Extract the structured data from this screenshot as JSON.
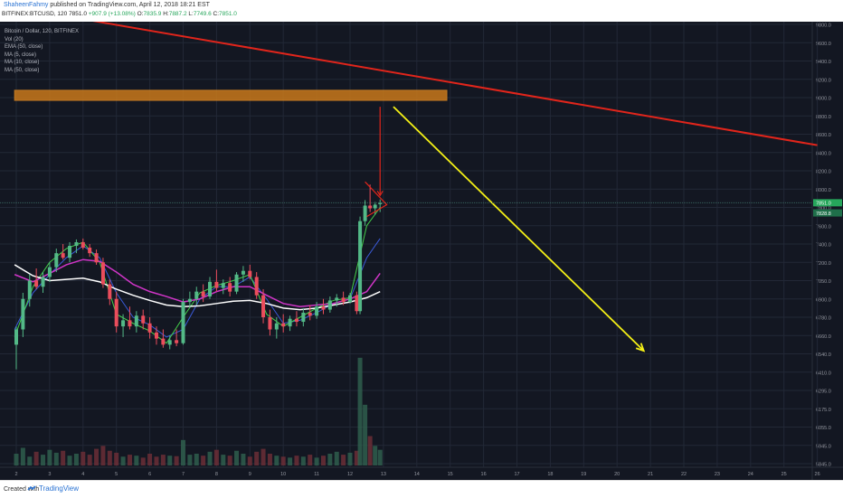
{
  "header": {
    "author": "ShaheenFahmy",
    "published_text": "published on TradingView.com, April 12, 2018 18:21 EST",
    "symbol": "BITFINEX:BTCUSD, 120",
    "last": "7851.0",
    "change": "+907.9 (+13.08%)",
    "o_label": "O:",
    "o_val": "7835.9",
    "h_label": "H:",
    "h_val": "7887.2",
    "l_label": "L:",
    "l_val": "7749.6",
    "c_label": "C:",
    "c_val": "7851.0"
  },
  "legend": {
    "title": "Bitcoin / Dollar, 120, BITFINEX",
    "items": [
      "Vol (20)",
      "EMA (50, close)",
      "MA (5, close)",
      "MA (10, close)",
      "MA (50, close)"
    ]
  },
  "footer": {
    "created": "Created with",
    "brand": "TradingView"
  },
  "colors": {
    "background": "#131722",
    "grid": "#222836",
    "up": "#53b987",
    "down": "#eb4d5c",
    "trendline": "#e1251b",
    "arrow": "#f4f016",
    "zone": "#c8781a",
    "ema": "#ffffff",
    "ma_magenta": "#d135c8",
    "ma_blue": "#3a5ad8",
    "ma_green": "#43d04a"
  },
  "chart_data": {
    "type": "candlestick",
    "symbol": "BITFINEX:BTCUSD",
    "interval": "120",
    "y_axis_labels": [
      9800.0,
      9600.0,
      9400.0,
      9200.0,
      9000.0,
      8800.0,
      8600.0,
      8400.0,
      8200.0,
      8000.0,
      7800.0,
      7600.0,
      7400.0,
      7200.0,
      7050.0,
      6900.0,
      6780.0,
      6660.0,
      6540.0,
      6410.0,
      6295.0,
      6175.0,
      6055.0,
      5945.0,
      5845.0
    ],
    "x_axis_labels": [
      "2",
      "3",
      "4",
      "5",
      "6",
      "7",
      "8",
      "9",
      "10",
      "11",
      "12",
      "13",
      "14",
      "15",
      "16",
      "17",
      "18",
      "19",
      "20",
      "21",
      "22",
      "23",
      "24",
      "25",
      "26"
    ],
    "price_tags": [
      "7851.0",
      "7828.8"
    ],
    "candles": [
      {
        "day": 2.0,
        "o": 6600,
        "h": 6720,
        "l": 6430,
        "c": 6700
      },
      {
        "day": 2.2,
        "o": 6700,
        "h": 6950,
        "l": 6650,
        "c": 6900
      },
      {
        "day": 2.4,
        "o": 6900,
        "h": 7100,
        "l": 6850,
        "c": 7050
      },
      {
        "day": 2.6,
        "o": 7050,
        "h": 7150,
        "l": 6980,
        "c": 7000
      },
      {
        "day": 2.8,
        "o": 7000,
        "h": 7120,
        "l": 6950,
        "c": 7080
      },
      {
        "day": 3.0,
        "o": 7080,
        "h": 7200,
        "l": 7040,
        "c": 7160
      },
      {
        "day": 3.2,
        "o": 7160,
        "h": 7350,
        "l": 7120,
        "c": 7300
      },
      {
        "day": 3.4,
        "o": 7300,
        "h": 7400,
        "l": 7230,
        "c": 7250
      },
      {
        "day": 3.6,
        "o": 7250,
        "h": 7420,
        "l": 7200,
        "c": 7380
      },
      {
        "day": 3.8,
        "o": 7380,
        "h": 7450,
        "l": 7300,
        "c": 7420
      },
      {
        "day": 4.0,
        "o": 7420,
        "h": 7460,
        "l": 7340,
        "c": 7360
      },
      {
        "day": 4.2,
        "o": 7360,
        "h": 7400,
        "l": 7260,
        "c": 7300
      },
      {
        "day": 4.4,
        "o": 7300,
        "h": 7340,
        "l": 7180,
        "c": 7200
      },
      {
        "day": 4.6,
        "o": 7200,
        "h": 7250,
        "l": 6990,
        "c": 7020
      },
      {
        "day": 4.8,
        "o": 7020,
        "h": 7060,
        "l": 6860,
        "c": 6900
      },
      {
        "day": 5.0,
        "o": 6900,
        "h": 6960,
        "l": 6680,
        "c": 6720
      },
      {
        "day": 5.2,
        "o": 6720,
        "h": 6800,
        "l": 6650,
        "c": 6760
      },
      {
        "day": 5.4,
        "o": 6760,
        "h": 6850,
        "l": 6700,
        "c": 6720
      },
      {
        "day": 5.6,
        "o": 6720,
        "h": 6820,
        "l": 6680,
        "c": 6790
      },
      {
        "day": 5.8,
        "o": 6790,
        "h": 6830,
        "l": 6700,
        "c": 6740
      },
      {
        "day": 6.0,
        "o": 6740,
        "h": 6780,
        "l": 6640,
        "c": 6680
      },
      {
        "day": 6.2,
        "o": 6680,
        "h": 6720,
        "l": 6600,
        "c": 6640
      },
      {
        "day": 6.4,
        "o": 6640,
        "h": 6700,
        "l": 6580,
        "c": 6600
      },
      {
        "day": 6.6,
        "o": 6600,
        "h": 6660,
        "l": 6570,
        "c": 6630
      },
      {
        "day": 6.8,
        "o": 6630,
        "h": 6700,
        "l": 6590,
        "c": 6610
      },
      {
        "day": 7.0,
        "o": 6610,
        "h": 6900,
        "l": 6600,
        "c": 6880
      },
      {
        "day": 7.2,
        "o": 6880,
        "h": 6960,
        "l": 6840,
        "c": 6900
      },
      {
        "day": 7.4,
        "o": 6900,
        "h": 7000,
        "l": 6860,
        "c": 6960
      },
      {
        "day": 7.6,
        "o": 6960,
        "h": 7020,
        "l": 6880,
        "c": 6920
      },
      {
        "day": 7.8,
        "o": 6920,
        "h": 7080,
        "l": 6900,
        "c": 7040
      },
      {
        "day": 8.0,
        "o": 7040,
        "h": 7140,
        "l": 6960,
        "c": 6990
      },
      {
        "day": 8.2,
        "o": 6990,
        "h": 7060,
        "l": 6940,
        "c": 7030
      },
      {
        "day": 8.4,
        "o": 7030,
        "h": 7080,
        "l": 6920,
        "c": 6960
      },
      {
        "day": 8.6,
        "o": 6960,
        "h": 7120,
        "l": 6940,
        "c": 7100
      },
      {
        "day": 8.8,
        "o": 7100,
        "h": 7170,
        "l": 7040,
        "c": 7130
      },
      {
        "day": 9.0,
        "o": 7130,
        "h": 7180,
        "l": 7060,
        "c": 7080
      },
      {
        "day": 9.2,
        "o": 7080,
        "h": 7120,
        "l": 6900,
        "c": 6930
      },
      {
        "day": 9.4,
        "o": 6930,
        "h": 6980,
        "l": 6740,
        "c": 6780
      },
      {
        "day": 9.6,
        "o": 6780,
        "h": 6830,
        "l": 6660,
        "c": 6700
      },
      {
        "day": 9.8,
        "o": 6700,
        "h": 6780,
        "l": 6640,
        "c": 6740
      },
      {
        "day": 10.0,
        "o": 6740,
        "h": 6800,
        "l": 6680,
        "c": 6720
      },
      {
        "day": 10.2,
        "o": 6720,
        "h": 6790,
        "l": 6690,
        "c": 6770
      },
      {
        "day": 10.4,
        "o": 6770,
        "h": 6820,
        "l": 6720,
        "c": 6750
      },
      {
        "day": 10.6,
        "o": 6750,
        "h": 6840,
        "l": 6720,
        "c": 6810
      },
      {
        "day": 10.8,
        "o": 6810,
        "h": 6860,
        "l": 6760,
        "c": 6790
      },
      {
        "day": 11.0,
        "o": 6790,
        "h": 6880,
        "l": 6770,
        "c": 6850
      },
      {
        "day": 11.2,
        "o": 6850,
        "h": 6900,
        "l": 6800,
        "c": 6830
      },
      {
        "day": 11.4,
        "o": 6830,
        "h": 6920,
        "l": 6810,
        "c": 6890
      },
      {
        "day": 11.6,
        "o": 6890,
        "h": 6940,
        "l": 6850,
        "c": 6910
      },
      {
        "day": 11.8,
        "o": 6910,
        "h": 6960,
        "l": 6860,
        "c": 6880
      },
      {
        "day": 12.0,
        "o": 6880,
        "h": 6950,
        "l": 6870,
        "c": 6930
      },
      {
        "day": 12.2,
        "o": 6930,
        "h": 6960,
        "l": 6800,
        "c": 6820
      },
      {
        "day": 12.3,
        "o": 6820,
        "h": 7700,
        "l": 6800,
        "c": 7650
      },
      {
        "day": 12.45,
        "o": 7650,
        "h": 7880,
        "l": 7600,
        "c": 7820
      },
      {
        "day": 12.6,
        "o": 7820,
        "h": 8050,
        "l": 7750,
        "c": 7790
      },
      {
        "day": 12.75,
        "o": 7790,
        "h": 7860,
        "l": 7720,
        "c": 7830
      },
      {
        "day": 12.9,
        "o": 7835.9,
        "h": 7887.2,
        "l": 7749.6,
        "c": 7851.0
      }
    ],
    "volume_range": [
      0,
      1200
    ],
    "volume": [
      120,
      180,
      90,
      140,
      110,
      160,
      130,
      150,
      100,
      120,
      140,
      110,
      170,
      200,
      150,
      130,
      90,
      110,
      100,
      80,
      120,
      90,
      110,
      100,
      95,
      260,
      110,
      120,
      100,
      140,
      160,
      110,
      100,
      150,
      120,
      90,
      140,
      170,
      120,
      100,
      90,
      80,
      100,
      90,
      110,
      80,
      100,
      120,
      140,
      110,
      130,
      150,
      1100,
      620,
      300,
      200,
      160
    ],
    "ema50": [
      [
        1.95,
        7180
      ],
      [
        2.5,
        7090
      ],
      [
        3.0,
        7050
      ],
      [
        3.5,
        7060
      ],
      [
        4.0,
        7070
      ],
      [
        4.5,
        7040
      ],
      [
        5.0,
        6980
      ],
      [
        5.5,
        6930
      ],
      [
        6.0,
        6890
      ],
      [
        6.5,
        6860
      ],
      [
        7.0,
        6850
      ],
      [
        7.5,
        6855
      ],
      [
        8.0,
        6870
      ],
      [
        8.5,
        6885
      ],
      [
        9.0,
        6890
      ],
      [
        9.5,
        6870
      ],
      [
        10.0,
        6840
      ],
      [
        10.5,
        6830
      ],
      [
        11.0,
        6840
      ],
      [
        11.5,
        6860
      ],
      [
        12.0,
        6880
      ],
      [
        12.5,
        6910
      ],
      [
        12.9,
        6960
      ]
    ],
    "ma50": [
      [
        1.95,
        7100
      ],
      [
        2.5,
        7040
      ],
      [
        3.0,
        7110
      ],
      [
        3.5,
        7180
      ],
      [
        4.0,
        7230
      ],
      [
        4.5,
        7210
      ],
      [
        5.0,
        7120
      ],
      [
        5.5,
        7020
      ],
      [
        6.0,
        6960
      ],
      [
        6.5,
        6920
      ],
      [
        7.0,
        6880
      ],
      [
        7.5,
        6900
      ],
      [
        8.0,
        6960
      ],
      [
        8.5,
        7000
      ],
      [
        9.0,
        7000
      ],
      [
        9.5,
        6930
      ],
      [
        10.0,
        6870
      ],
      [
        10.5,
        6850
      ],
      [
        11.0,
        6860
      ],
      [
        11.5,
        6870
      ],
      [
        12.0,
        6900
      ],
      [
        12.5,
        6960
      ],
      [
        12.9,
        7110
      ]
    ],
    "ma10": [
      [
        1.95,
        6700
      ],
      [
        2.5,
        6950
      ],
      [
        3.0,
        7100
      ],
      [
        3.5,
        7250
      ],
      [
        4.0,
        7380
      ],
      [
        4.5,
        7250
      ],
      [
        5.0,
        6950
      ],
      [
        5.5,
        6780
      ],
      [
        6.0,
        6730
      ],
      [
        6.5,
        6650
      ],
      [
        7.0,
        6700
      ],
      [
        7.5,
        6900
      ],
      [
        8.0,
        7000
      ],
      [
        8.5,
        7000
      ],
      [
        9.0,
        7080
      ],
      [
        9.5,
        6900
      ],
      [
        10.0,
        6740
      ],
      [
        10.5,
        6760
      ],
      [
        11.0,
        6810
      ],
      [
        11.5,
        6870
      ],
      [
        12.0,
        6900
      ],
      [
        12.5,
        7250
      ],
      [
        12.9,
        7460
      ]
    ],
    "ma5": [
      [
        1.95,
        6650
      ],
      [
        2.5,
        7000
      ],
      [
        3.0,
        7200
      ],
      [
        3.5,
        7350
      ],
      [
        4.0,
        7420
      ],
      [
        4.5,
        7200
      ],
      [
        5.0,
        6800
      ],
      [
        5.5,
        6740
      ],
      [
        6.0,
        6690
      ],
      [
        6.5,
        6610
      ],
      [
        7.0,
        6780
      ],
      [
        7.5,
        6950
      ],
      [
        8.0,
        7010
      ],
      [
        8.5,
        7050
      ],
      [
        9.0,
        7100
      ],
      [
        9.5,
        6800
      ],
      [
        10.0,
        6720
      ],
      [
        10.5,
        6780
      ],
      [
        11.0,
        6840
      ],
      [
        11.5,
        6890
      ],
      [
        12.0,
        6910
      ],
      [
        12.5,
        7600
      ],
      [
        12.9,
        7800
      ]
    ],
    "annotations": {
      "resistance_zone": {
        "x_from": 1.95,
        "x_to": 14.9,
        "y_from": 8970,
        "y_to": 9080
      },
      "trendline": {
        "x1": 3.0,
        "y1": 9920,
        "x2": 26.0,
        "y2": 8480
      },
      "down_arrow": {
        "x": 12.9,
        "y_from": 8900,
        "y_to": 7930
      },
      "forecast_arrow": {
        "x1": 13.3,
        "y1": 8900,
        "x2": 20.8,
        "y2": 6560
      },
      "wedge": [
        [
          12.5,
          7700
        ],
        [
          13.1,
          7830
        ],
        [
          12.45,
          8080
        ]
      ]
    }
  }
}
